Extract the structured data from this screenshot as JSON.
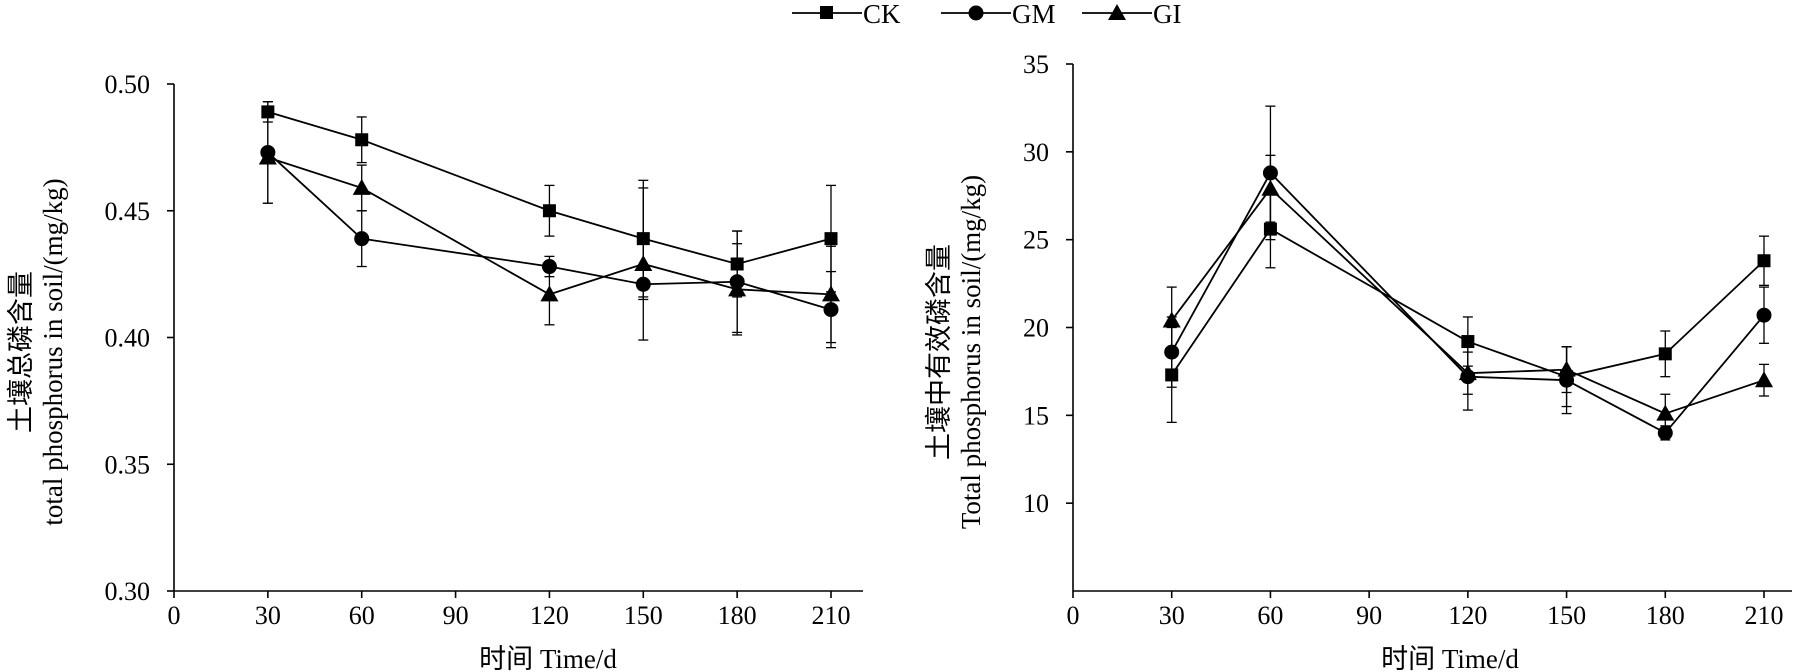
{
  "legend": [
    {
      "label": "CK",
      "marker": "square"
    },
    {
      "label": "GM",
      "marker": "circle"
    },
    {
      "label": "GI",
      "marker": "triangle"
    }
  ],
  "chart_data": [
    {
      "type": "line",
      "xlabel": "时间 Time/d",
      "ylabel_line1": "土壤总磷含量",
      "ylabel_line2": "total phosphorus in soil/(mg/kg)",
      "xlim": [
        0,
        210
      ],
      "ylim": [
        0.3,
        0.5
      ],
      "xticks": [
        0,
        30,
        60,
        90,
        120,
        150,
        180,
        210
      ],
      "yticks": [
        "0.30",
        "0.35",
        "0.40",
        "0.45",
        "0.50"
      ],
      "x": [
        30,
        60,
        120,
        150,
        180,
        210
      ],
      "series": [
        {
          "name": "CK",
          "marker": "square",
          "values": [
            0.489,
            0.478,
            0.45,
            0.439,
            0.429,
            0.439
          ],
          "errors": [
            0.004,
            0.009,
            0.01,
            0.023,
            0.013,
            0.021
          ]
        },
        {
          "name": "GM",
          "marker": "circle",
          "values": [
            0.473,
            0.439,
            0.428,
            0.421,
            0.422,
            0.411
          ],
          "errors": [
            0.02,
            0.011,
            0.004,
            0.006,
            0.02,
            0.015
          ]
        },
        {
          "name": "GI",
          "marker": "triangle",
          "values": [
            0.471,
            0.459,
            0.417,
            0.429,
            0.419,
            0.417
          ],
          "errors": [
            0.018,
            0.009,
            0.012,
            0.03,
            0.018,
            0.019
          ]
        }
      ]
    },
    {
      "type": "line",
      "xlabel": "时间 Time/d",
      "ylabel_line1": "土壤中有效磷含量",
      "ylabel_line2": "Total phosphorus in soil/(mg/kg)",
      "xlim": [
        0,
        210
      ],
      "ylim": [
        5,
        35
      ],
      "xticks": [
        0,
        30,
        60,
        90,
        120,
        150,
        180,
        210
      ],
      "yticks": [
        "10",
        "15",
        "20",
        "25",
        "30",
        "35"
      ],
      "x": [
        30,
        60,
        120,
        150,
        180,
        210
      ],
      "series": [
        {
          "name": "CK",
          "marker": "square",
          "values": [
            17.3,
            25.6,
            19.2,
            17.2,
            18.5,
            23.8
          ],
          "errors": [
            2.7,
            2.2,
            1.4,
            1.7,
            1.3,
            1.4
          ]
        },
        {
          "name": "GM",
          "marker": "circle",
          "values": [
            18.6,
            28.8,
            17.2,
            17.0,
            14.0,
            20.7
          ],
          "errors": [
            2.0,
            3.8,
            1.9,
            1.9,
            0.4,
            1.6
          ]
        },
        {
          "name": "GI",
          "marker": "triangle",
          "values": [
            20.4,
            27.9,
            17.4,
            17.6,
            15.1,
            17.0
          ],
          "errors": [
            1.9,
            1.9,
            1.2,
            1.3,
            1.1,
            0.9
          ]
        }
      ]
    }
  ]
}
